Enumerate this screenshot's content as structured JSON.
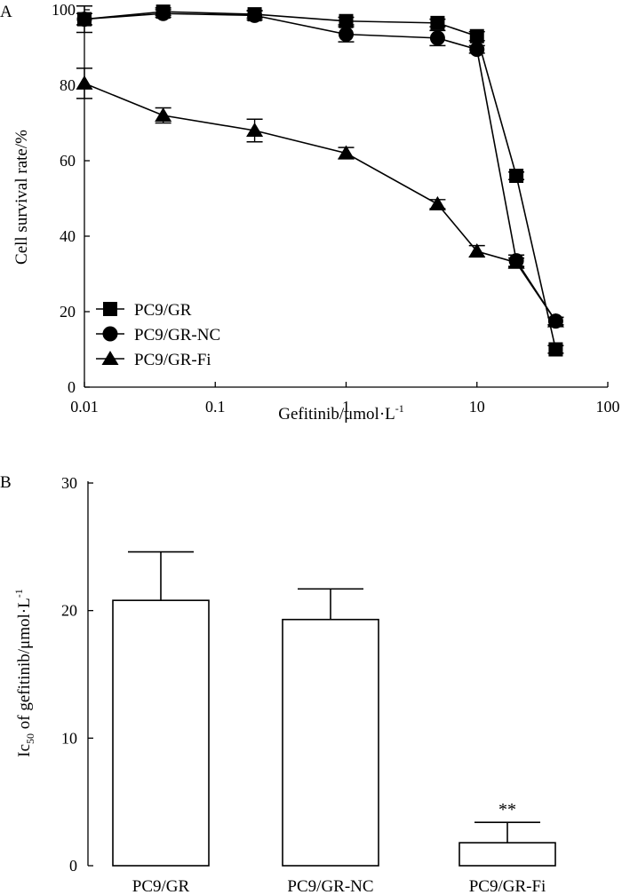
{
  "chart_data": [
    {
      "panel_label": "A",
      "type": "line",
      "xscale": "log",
      "xlabel": "Gefitinib/μmol·L",
      "xlabel_sup": "-1",
      "ylabel": "Cell survival rate/%",
      "xlim": [
        0.01,
        100
      ],
      "ylim": [
        0,
        100
      ],
      "x_ticks": [
        0.01,
        0.1,
        1,
        10,
        100
      ],
      "x_tick_labels": [
        "0.01",
        "0.1",
        "1",
        "10",
        "100"
      ],
      "y_ticks": [
        0,
        20,
        40,
        60,
        80,
        100
      ],
      "y_tick_labels": [
        "0",
        "20",
        "40",
        "60",
        "80",
        "100"
      ],
      "legend_position": "bottom-left",
      "series": [
        {
          "name": "PC9/GR",
          "marker": "square",
          "x": [
            0.01,
            0.04,
            0.2,
            1,
            5,
            10,
            20,
            40
          ],
          "values": [
            97.5,
            99.5,
            98.8,
            97,
            96.5,
            93,
            56,
            10
          ],
          "errors": [
            1.5,
            1,
            1,
            1,
            1,
            1.2,
            1,
            1
          ]
        },
        {
          "name": "PC9/GR-NC",
          "marker": "circle",
          "x": [
            0.01,
            0.04,
            0.2,
            1,
            5,
            10,
            20,
            40
          ],
          "values": [
            97.5,
            99,
            98.5,
            93.5,
            92.5,
            89.5,
            33.5,
            17.5
          ],
          "errors": [
            3.5,
            1,
            1.2,
            2,
            2,
            1,
            1.5,
            1
          ]
        },
        {
          "name": "PC9/GR-Fi",
          "marker": "triangle",
          "x": [
            0.01,
            0.04,
            0.2,
            1,
            5,
            10,
            20,
            40
          ],
          "values": [
            80.5,
            72,
            68,
            62,
            48.5,
            36,
            33,
            17.5
          ],
          "errors": [
            4,
            2,
            3,
            1.5,
            1.2,
            1.5,
            1.2,
            1
          ]
        }
      ]
    },
    {
      "panel_label": "B",
      "type": "bar",
      "ylabel": "Ic",
      "ylabel_sub": "50",
      "ylabel_rest": " of gefitinib/μmol·L",
      "ylabel_sup": "-1",
      "ylim": [
        0,
        30
      ],
      "y_ticks": [
        0,
        10,
        20,
        30
      ],
      "y_tick_labels": [
        "0",
        "10",
        "20",
        "30"
      ],
      "categories": [
        "PC9/GR",
        "PC9/GR-NC",
        "PC9/GR-Fi"
      ],
      "values": [
        20.8,
        19.3,
        1.8
      ],
      "errors": [
        3.8,
        2.4,
        1.6
      ],
      "annotations": [
        "",
        "",
        "**"
      ]
    }
  ]
}
